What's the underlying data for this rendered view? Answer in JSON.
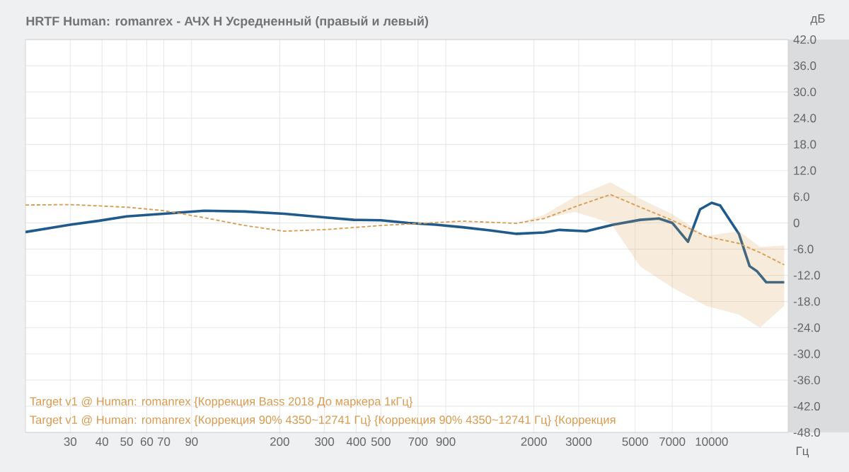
{
  "chart_data": {
    "type": "line",
    "title": "HRTF Human: romanrex - АЧХ H Усредненный (правый и левый)",
    "xlabel": "Гц",
    "ylabel": "дБ",
    "log": "x",
    "grid": true,
    "legend": "bottom left",
    "marker": "none",
    "xlim": [
      20,
      20000
    ],
    "xticks": [
      30,
      40,
      50,
      60,
      70,
      90,
      200,
      300,
      400,
      500,
      700,
      900,
      2000,
      3000,
      5000,
      7000,
      10000
    ],
    "ylim": [
      -48,
      42
    ],
    "yticks": [
      {
        "value": 42,
        "label": "42.0"
      },
      {
        "value": 36,
        "label": "36.0"
      },
      {
        "value": 30,
        "label": "30.0"
      },
      {
        "value": 24,
        "label": "24.0"
      },
      {
        "value": 18,
        "label": "18.0"
      },
      {
        "value": 12,
        "label": "12.0"
      },
      {
        "value": 6,
        "label": "6.0"
      },
      {
        "value": 0,
        "label": "0"
      },
      {
        "value": -6,
        "label": "-6.0"
      },
      {
        "value": -12,
        "label": "-12.0"
      },
      {
        "value": -18,
        "label": "-18.0"
      },
      {
        "value": -24,
        "label": "-24.0"
      },
      {
        "value": -30,
        "label": "-30.0"
      },
      {
        "value": -36,
        "label": "-36.0"
      },
      {
        "value": -42,
        "label": "-42.0"
      },
      {
        "value": -48,
        "label": "-48.0"
      }
    ],
    "series": [
      {
        "color": "#1f5a8a",
        "line_style": "solid",
        "x": [
          20,
          30,
          39,
          50,
          70,
          101,
          146,
          208,
          308,
          391,
          500,
          640,
          822,
          1049,
          1340,
          1710,
          2190,
          2520,
          3210,
          4100,
          5240,
          6200,
          7000,
          8070,
          9000,
          10000,
          10800,
          12800,
          14100,
          15100,
          16400,
          19300
        ],
        "values": [
          -2.1,
          -0.4,
          0.5,
          1.5,
          2.1,
          2.8,
          2.6,
          2.1,
          1.2,
          0.7,
          0.6,
          0,
          -0.4,
          -1.0,
          -1.7,
          -2.5,
          -2.2,
          -1.6,
          -1.9,
          -0.4,
          0.7,
          1.0,
          0,
          -4.3,
          3.1,
          4.6,
          4.0,
          -2.5,
          -9.9,
          -11.1,
          -13.6,
          -13.6
        ]
      },
      {
        "name": "Target v1 @ Human: romanrex {Коррекция Bass 2018 До маркера 1кГц}",
        "color": "#d99a4e",
        "line_style": "dashed",
        "x": [
          20,
          30,
          50,
          70,
          101,
          146,
          208,
          308,
          500,
          822,
          1049,
          1710,
          2190,
          2900,
          4000,
          5240,
          7000,
          9500,
          12800,
          15500,
          19300
        ],
        "values": [
          4.1,
          4.2,
          3.6,
          2.8,
          1.2,
          -0.6,
          -1.9,
          -1.5,
          -0.6,
          0.1,
          0.4,
          -0.1,
          1.0,
          3.7,
          6.5,
          3.6,
          0.6,
          -3.1,
          -4.7,
          -6.8,
          -9.6
        ],
        "lower": [
          4.1,
          4.2,
          3.6,
          2.8,
          1.2,
          -0.6,
          -1.9,
          -1.5,
          -0.6,
          0.1,
          0.4,
          -0.1,
          1.0,
          2.5,
          0,
          -10,
          -14.8,
          -19,
          -21,
          -24,
          -19
        ],
        "upper": [
          4.1,
          4.2,
          3.6,
          2.8,
          1.2,
          -0.6,
          -1.9,
          -1.5,
          -0.6,
          0.1,
          0.4,
          -0.1,
          1.8,
          6.0,
          9.3,
          5.5,
          2.0,
          -3.0,
          -1.9,
          -5.5,
          -5.2
        ]
      }
    ],
    "annotations": [
      "Target v1 @ Human: romanrex {Коррекция 90% 4350~12741 Гц} {Коррекция 90% 4350~12741 Гц} {Коррекция"
    ]
  }
}
